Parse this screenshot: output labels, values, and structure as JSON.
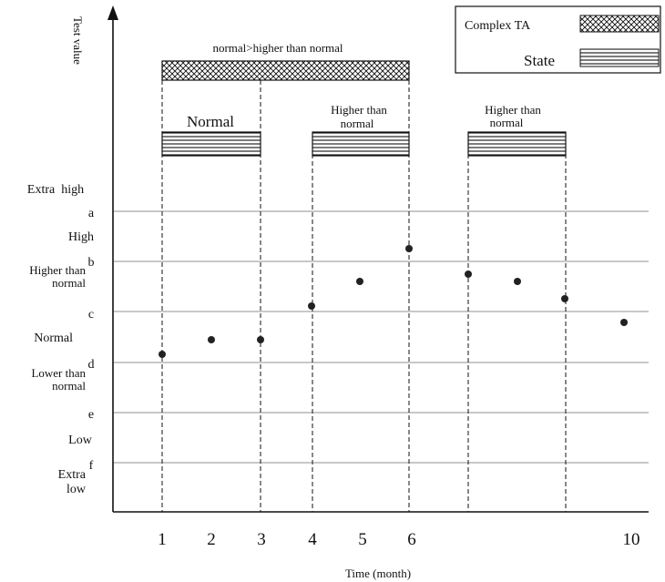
{
  "axes": {
    "y_label": "Test value",
    "x_label": "Time (month)",
    "x_ticks": [
      "1",
      "2",
      "3",
      "4",
      "5",
      "6",
      "10"
    ]
  },
  "legend": {
    "complex_ta": "Complex TA",
    "state": "State"
  },
  "complex_ta_bar": {
    "label": "normal>higher than normal"
  },
  "state_bars": [
    {
      "line1": "Normal",
      "line2": ""
    },
    {
      "line1": "Higher than",
      "line2": "normal"
    },
    {
      "line1": "Higher than",
      "line2": "normal"
    }
  ],
  "levels": {
    "boundaries": [
      "a",
      "b",
      "c",
      "d",
      "e",
      "f"
    ],
    "categories": [
      {
        "line1": "Extra  high",
        "line2": ""
      },
      {
        "line1": "High",
        "line2": ""
      },
      {
        "line1": "Higher than",
        "line2": "normal"
      },
      {
        "line1": "Normal",
        "line2": ""
      },
      {
        "line1": "Lower than",
        "line2": "normal"
      },
      {
        "line1": "Low",
        "line2": ""
      },
      {
        "line1": "Extra",
        "line2": "low"
      }
    ]
  },
  "colors": {
    "ink": "#111111",
    "gridline": "#a8a8a8",
    "background": "#ffffff"
  }
}
